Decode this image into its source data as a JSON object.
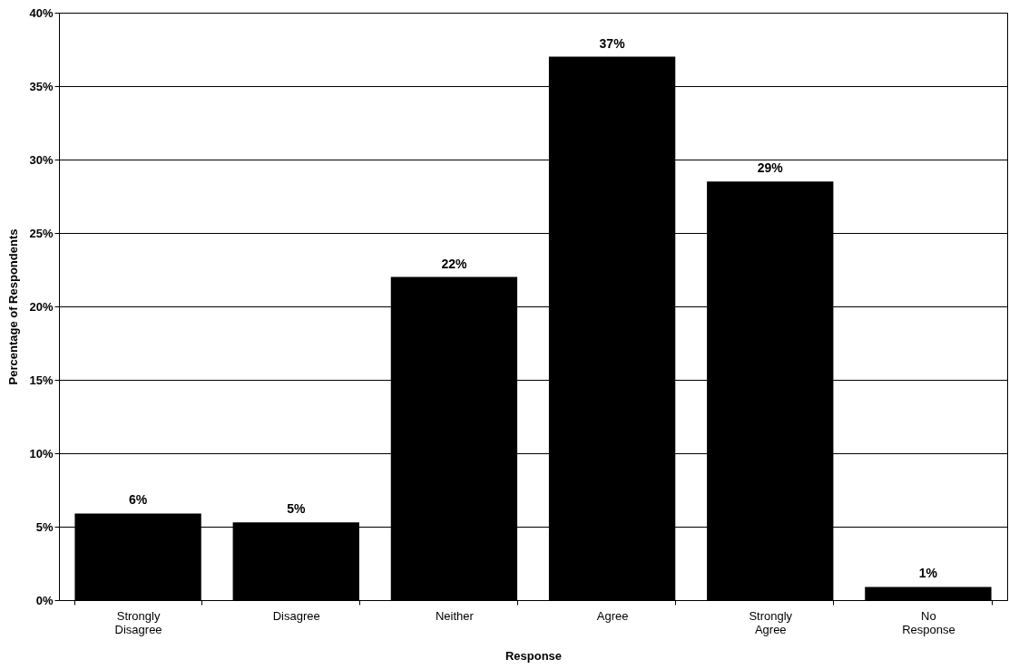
{
  "chart_data": {
    "type": "bar",
    "xlabel": "Response",
    "ylabel": "Percentage of Respondents",
    "categories": [
      "Strongly Disagree",
      "Disagree",
      "Neither",
      "Agree",
      "Strongly Agree",
      "No Response"
    ],
    "values": [
      5.9,
      5.3,
      22,
      37,
      28.5,
      0.9
    ],
    "value_labels": [
      "6%",
      "5%",
      "22%",
      "37%",
      "29%",
      "1%"
    ],
    "color": "#000000",
    "ylim": [
      0,
      40
    ],
    "yticks": [
      {
        "value": 0,
        "label": "0%"
      },
      {
        "value": 5,
        "label": "5%"
      },
      {
        "value": 10,
        "label": "10%"
      },
      {
        "value": 15,
        "label": "15%"
      },
      {
        "value": 20,
        "label": "20%"
      },
      {
        "value": 25,
        "label": "25%"
      },
      {
        "value": 30,
        "label": "30%"
      },
      {
        "value": 35,
        "label": "35%"
      },
      {
        "value": 40,
        "label": "40%"
      }
    ],
    "grid": "y"
  }
}
